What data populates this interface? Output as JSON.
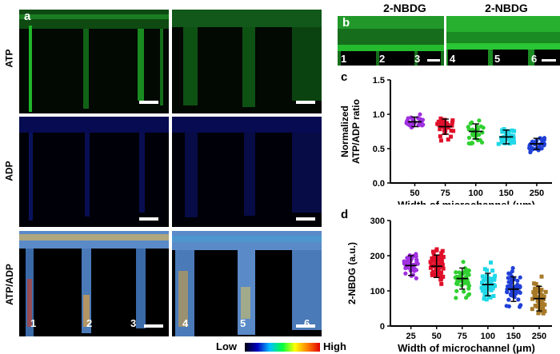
{
  "panel_a": {
    "letter": "a",
    "row_labels": [
      "ATP",
      "ADP",
      "ATP/ADP"
    ],
    "channel_numbers": [
      "1",
      "2",
      "3",
      "4",
      "5",
      "6"
    ],
    "colorbar": {
      "low": "Low",
      "high": "High"
    }
  },
  "panel_b": {
    "letter": "b",
    "headers": [
      "2-NBDG",
      "2-NBDG"
    ],
    "channel_numbers": [
      "1",
      "2",
      "3",
      "4",
      "5",
      "6"
    ]
  },
  "colors": {
    "atp_green": "#22c62a",
    "adp_blue": "#1a2a9e",
    "purple": "#a030e0",
    "red": "#e0102a",
    "green": "#30d030",
    "cyan": "#20d8e8",
    "blue": "#2040d8",
    "brown": "#a87a28"
  },
  "chart_data": [
    {
      "letter": "c",
      "type": "scatter",
      "ylabel_line1": "Normalized",
      "ylabel_line2": "ATP/ADP ratio",
      "xlabel": "Width of microchannel (μm)",
      "categories": [
        "50",
        "75",
        "100",
        "150",
        "250"
      ],
      "ylim": [
        0,
        1.5
      ],
      "yticks": [
        "0.0",
        "0.5",
        "1.0",
        "1.5"
      ],
      "ytick_values": [
        0,
        0.5,
        1.0,
        1.5
      ],
      "means": [
        0.89,
        0.82,
        0.75,
        0.67,
        0.57
      ],
      "sds": [
        0.07,
        0.11,
        0.11,
        0.1,
        0.08
      ],
      "n_points": [
        30,
        30,
        30,
        30,
        30
      ],
      "series_colors": [
        "#a030e0",
        "#e0102a",
        "#30d030",
        "#20d8e8",
        "#2040d8"
      ]
    },
    {
      "letter": "d",
      "type": "scatter",
      "ylabel": "2-NBDG (a.u.)",
      "xlabel": "Width of microchannel (μm)",
      "categories": [
        "25",
        "50",
        "75",
        "100",
        "150",
        "250"
      ],
      "ylim": [
        0,
        300
      ],
      "yticks": [
        "0",
        "100",
        "200",
        "300"
      ],
      "ytick_values": [
        0,
        100,
        200,
        300
      ],
      "means": [
        172,
        170,
        135,
        118,
        105,
        78
      ],
      "sds": [
        28,
        32,
        30,
        32,
        35,
        35
      ],
      "n_points": [
        45,
        60,
        50,
        50,
        55,
        50
      ],
      "series_colors": [
        "#a030e0",
        "#e0102a",
        "#30d030",
        "#20d8e8",
        "#2040d8",
        "#a87a28"
      ]
    }
  ]
}
